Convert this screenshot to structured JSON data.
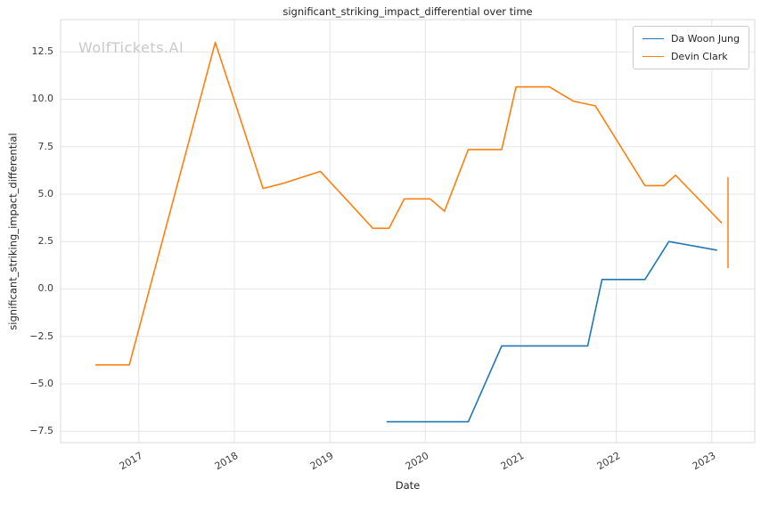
{
  "watermark": "WolfTickets.AI",
  "colors": {
    "background": "#ffffff",
    "text": "#262626",
    "tick_text": "#3b3b3b",
    "watermark": "#c9c9c9",
    "grid": "#e5e5e5",
    "spine": "#d9d9d9",
    "series_blue": "#1f77b4",
    "series_orange": "#ff7f0e"
  },
  "chart_data": {
    "type": "line",
    "title": "significant_striking_impact_differential over time",
    "xlabel": "Date",
    "ylabel": "significant_striking_impact_differential",
    "xlim": [
      2016.18,
      2023.45
    ],
    "ylim": [
      -8.1,
      14.2
    ],
    "grid": true,
    "legend_position": "upper right",
    "xticks": [
      {
        "value": 2017,
        "label": "2017"
      },
      {
        "value": 2018,
        "label": "2018"
      },
      {
        "value": 2019,
        "label": "2019"
      },
      {
        "value": 2020,
        "label": "2020"
      },
      {
        "value": 2021,
        "label": "2021"
      },
      {
        "value": 2022,
        "label": "2022"
      },
      {
        "value": 2023,
        "label": "2023"
      }
    ],
    "yticks": [
      {
        "value": -7.5,
        "label": "−7.5"
      },
      {
        "value": -5.0,
        "label": "−5.0"
      },
      {
        "value": -2.5,
        "label": "−2.5"
      },
      {
        "value": 0.0,
        "label": "0.0"
      },
      {
        "value": 2.5,
        "label": "2.5"
      },
      {
        "value": 5.0,
        "label": "5.0"
      },
      {
        "value": 7.5,
        "label": "7.5"
      },
      {
        "value": 10.0,
        "label": "10.0"
      },
      {
        "value": 12.5,
        "label": "12.5"
      }
    ],
    "series": [
      {
        "name": "Da Woon Jung",
        "color": "#1f77b4",
        "x": [
          2019.6,
          2020.45,
          2020.8,
          2021.7,
          2021.85,
          2022.3,
          2022.55,
          2023.05
        ],
        "y": [
          -7.0,
          -7.0,
          -3.0,
          -3.0,
          0.5,
          0.5,
          2.5,
          2.05
        ]
      },
      {
        "name": "Devin Clark",
        "color": "#ff7f0e",
        "x": [
          2016.55,
          2016.9,
          2017.8,
          2018.3,
          2018.5,
          2018.9,
          2019.45,
          2019.62,
          2019.78,
          2020.05,
          2020.2,
          2020.45,
          2020.8,
          2020.95,
          2021.3,
          2021.55,
          2021.78,
          2022.3,
          2022.5,
          2022.62,
          2023.1
        ],
        "y": [
          -4.0,
          -4.0,
          13.0,
          5.3,
          5.55,
          6.2,
          3.2,
          3.2,
          4.75,
          4.75,
          4.1,
          7.35,
          7.35,
          10.65,
          10.65,
          9.9,
          9.65,
          5.45,
          5.45,
          6.0,
          3.5
        ]
      }
    ],
    "error_bars": [
      {
        "series": "Devin Clark",
        "x": 2023.17,
        "y": 3.5,
        "y_low": 1.1,
        "y_high": 5.9,
        "color": "#ff7f0e"
      }
    ]
  }
}
